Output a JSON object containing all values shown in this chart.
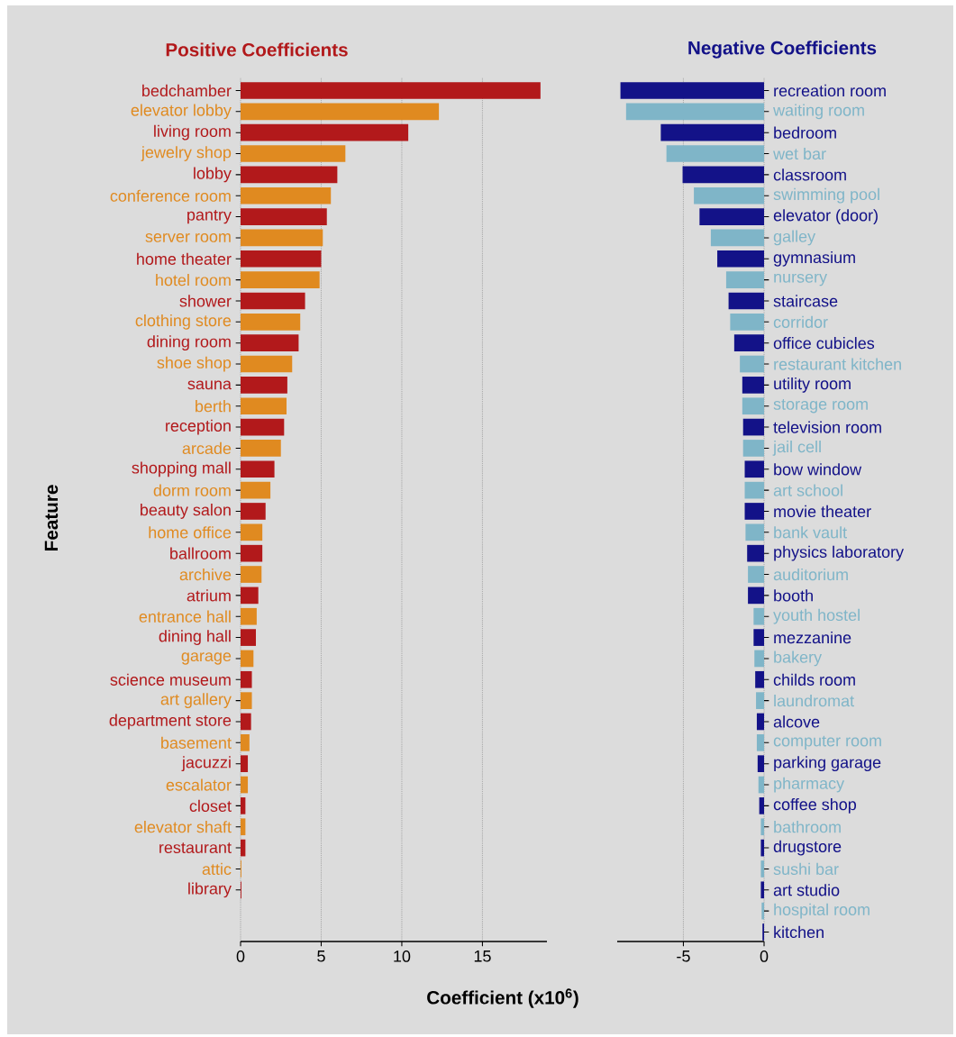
{
  "chart_data": [
    {
      "type": "bar",
      "orientation": "horizontal",
      "title": "Positive Coefficients",
      "ylabel": "Feature",
      "xlabel": "Coefficient (x10$^{6}$)",
      "categories": [
        "bedchamber",
        "elevator lobby",
        "living room",
        "jewelry shop",
        "lobby",
        "conference room",
        "pantry",
        "server room",
        "home theater",
        "hotel room",
        "shower",
        "clothing store",
        "dining room",
        "shoe shop",
        "sauna",
        "berth",
        "reception",
        "arcade",
        "shopping mall",
        "dorm room",
        "beauty salon",
        "home office",
        "ballroom",
        "archive",
        "atrium",
        "entrance hall",
        "dining hall",
        "garage",
        "science museum",
        "art gallery",
        "department store",
        "basement",
        "jacuzzi",
        "escalator",
        "closet",
        "elevator shaft",
        "restaurant",
        "attic",
        "library"
      ],
      "values": [
        18.6,
        12.3,
        10.4,
        6.5,
        6.0,
        5.6,
        5.35,
        5.1,
        5.0,
        4.9,
        4.0,
        3.7,
        3.6,
        3.2,
        2.9,
        2.85,
        2.7,
        2.5,
        2.1,
        1.85,
        1.55,
        1.35,
        1.35,
        1.3,
        1.1,
        1.0,
        0.95,
        0.8,
        0.7,
        0.7,
        0.65,
        0.55,
        0.45,
        0.45,
        0.3,
        0.3,
        0.3,
        0.05,
        0.05
      ],
      "colors": [
        "#b2191b",
        "#e08a20",
        "#b2191b",
        "#e08a20",
        "#b2191b",
        "#e08a20",
        "#b2191b",
        "#e08a20",
        "#b2191b",
        "#e08a20",
        "#b2191b",
        "#e08a20",
        "#b2191b",
        "#e08a20",
        "#b2191b",
        "#e08a20",
        "#b2191b",
        "#e08a20",
        "#b2191b",
        "#e08a20",
        "#b2191b",
        "#e08a20",
        "#b2191b",
        "#e08a20",
        "#b2191b",
        "#e08a20",
        "#b2191b",
        "#e08a20",
        "#b2191b",
        "#e08a20",
        "#b2191b",
        "#e08a20",
        "#b2191b",
        "#e08a20",
        "#b2191b",
        "#e08a20",
        "#b2191b",
        "#e08a20",
        "#b2191b"
      ],
      "xlim": [
        0,
        19
      ],
      "xticks": [
        0,
        5,
        10,
        15
      ],
      "grid": "x"
    },
    {
      "type": "bar",
      "orientation": "horizontal",
      "title": "Negative Coefficients",
      "categories": [
        "recreation room",
        "waiting room",
        "bedroom",
        "wet bar",
        "classroom",
        "swimming pool",
        "elevator (door)",
        "galley",
        "gymnasium",
        "nursery",
        "staircase",
        "corridor",
        "office cubicles",
        "restaurant kitchen",
        "utility room",
        "storage room",
        "television room",
        "jail cell",
        "bow window",
        "art school",
        "movie theater",
        "bank vault",
        "physics laboratory",
        "auditorium",
        "booth",
        "youth hostel",
        "mezzanine",
        "bakery",
        "childs room",
        "laundromat",
        "alcove",
        "computer room",
        "parking garage",
        "pharmacy",
        "coffee shop",
        "bathroom",
        "drugstore",
        "sushi bar",
        "art studio",
        "hospital room",
        "kitchen"
      ],
      "values": [
        -8.9,
        -8.55,
        -6.4,
        -6.05,
        -5.05,
        -4.35,
        -4.0,
        -3.3,
        -2.9,
        -2.35,
        -2.2,
        -2.1,
        -1.85,
        -1.5,
        -1.35,
        -1.35,
        -1.3,
        -1.3,
        -1.2,
        -1.2,
        -1.2,
        -1.15,
        -1.05,
        -1.0,
        -1.0,
        -0.65,
        -0.65,
        -0.6,
        -0.55,
        -0.5,
        -0.45,
        -0.45,
        -0.4,
        -0.35,
        -0.3,
        -0.2,
        -0.2,
        -0.2,
        -0.2,
        -0.15,
        -0.1
      ],
      "colors": [
        "#131288",
        "#7fb5c8",
        "#131288",
        "#7fb5c8",
        "#131288",
        "#7fb5c8",
        "#131288",
        "#7fb5c8",
        "#131288",
        "#7fb5c8",
        "#131288",
        "#7fb5c8",
        "#131288",
        "#7fb5c8",
        "#131288",
        "#7fb5c8",
        "#131288",
        "#7fb5c8",
        "#131288",
        "#7fb5c8",
        "#131288",
        "#7fb5c8",
        "#131288",
        "#7fb5c8",
        "#131288",
        "#7fb5c8",
        "#131288",
        "#7fb5c8",
        "#131288",
        "#7fb5c8",
        "#131288",
        "#7fb5c8",
        "#131288",
        "#7fb5c8",
        "#131288",
        "#7fb5c8",
        "#131288",
        "#7fb5c8",
        "#131288",
        "#7fb5c8",
        "#131288"
      ],
      "xlim": [
        -9.1,
        0
      ],
      "xticks": [
        -5,
        0
      ],
      "grid": "x"
    }
  ]
}
